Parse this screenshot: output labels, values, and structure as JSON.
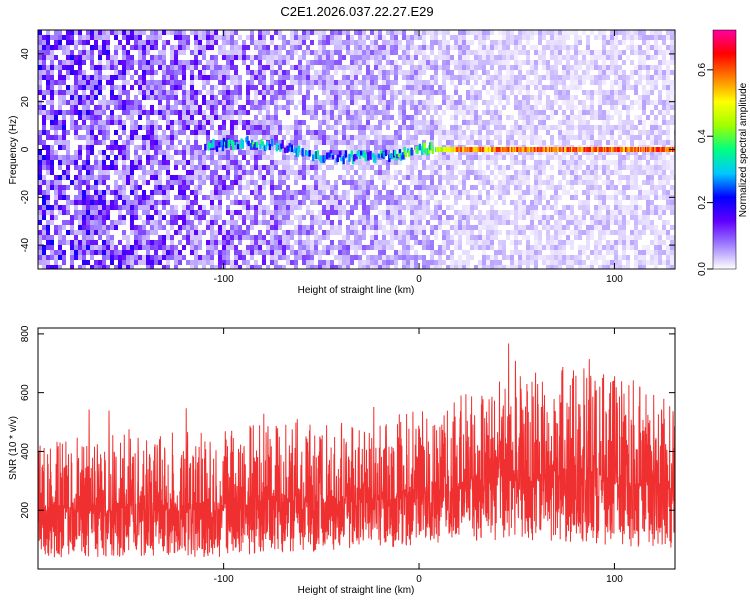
{
  "figure": {
    "title": "C2E1.2026.037.22.27.E29"
  },
  "chart_data": [
    {
      "type": "heatmap",
      "xlabel": "Height of straight line (km)",
      "ylabel": "Frequency (Hz)",
      "xlim": [
        -195,
        131
      ],
      "ylim": [
        -50,
        50
      ],
      "x_ticks": [
        -100,
        0,
        100
      ],
      "y_ticks": [
        -40,
        -20,
        0,
        20,
        40
      ],
      "colorbar": {
        "label": "Normalized spectral amplitude",
        "range": [
          0,
          0.72
        ],
        "ticks": [
          0.0,
          0.2,
          0.4,
          0.6
        ],
        "colormap": [
          "#ffffff",
          "#a080ff",
          "#6000ff",
          "#0000ff",
          "#00c8ff",
          "#00ff80",
          "#a0ff00",
          "#ffff00",
          "#ff8000",
          "#ff0000",
          "#ff00a0"
        ]
      },
      "signal_track": {
        "description_points_x": [
          -110,
          -90,
          -70,
          -50,
          -30,
          -10,
          0,
          10,
          20,
          60,
          100,
          131
        ],
        "frequency_hz": [
          1,
          3,
          1,
          -3,
          -3,
          -2,
          0,
          0,
          0,
          0,
          0,
          0
        ],
        "amplitude": [
          0.25,
          0.3,
          0.25,
          0.25,
          0.25,
          0.3,
          0.35,
          0.45,
          0.55,
          0.6,
          0.6,
          0.6
        ]
      },
      "background_amplitude_left": 0.12,
      "background_amplitude_right": 0.03
    },
    {
      "type": "line",
      "xlabel": "Height of straight line (km)",
      "ylabel": "SNR (10 * v/v)",
      "xlim": [
        -195,
        131
      ],
      "ylim": [
        0,
        820
      ],
      "x_ticks": [
        -100,
        0,
        100
      ],
      "y_ticks": [
        200,
        400,
        600,
        800
      ],
      "series": [
        {
          "color": "#f03030",
          "envelope_x": [
            -195,
            -150,
            -100,
            -80,
            -50,
            -20,
            0,
            20,
            50,
            80,
            100,
            131
          ],
          "envelope_upper": [
            430,
            450,
            460,
            520,
            480,
            500,
            530,
            580,
            640,
            680,
            640,
            600
          ],
          "envelope_lower": [
            40,
            40,
            40,
            50,
            60,
            70,
            80,
            90,
            100,
            90,
            80,
            70
          ]
        }
      ]
    }
  ]
}
